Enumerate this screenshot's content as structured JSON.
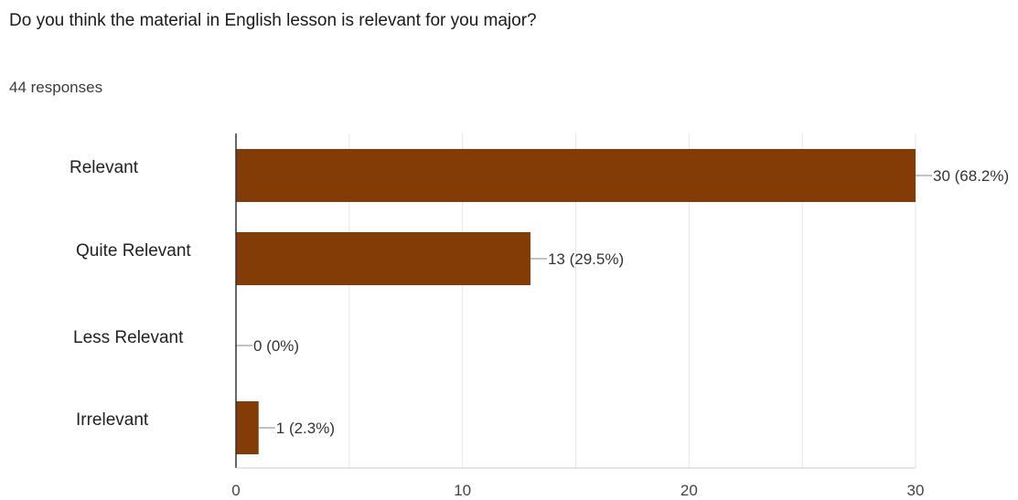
{
  "question": {
    "text": "Do you think the material in English lesson is relevant for you major?",
    "responses": "44 responses"
  },
  "colors": {
    "bar": "#833C06",
    "grid": "#e6e6e6",
    "axis": "#333333",
    "leader": "#9e9e9e"
  },
  "chart_data": {
    "type": "bar",
    "orientation": "horizontal",
    "title": "Do you think the material in English lesson is relevant for you major?",
    "categories": [
      "Relevant",
      "Quite Relevant",
      "Less Relevant",
      "Irrelevant"
    ],
    "values": [
      30,
      13,
      0,
      1
    ],
    "data_labels": [
      "30 (68.2%)",
      "13 (29.5%)",
      "0 (0%)",
      "1 (2.3%)"
    ],
    "xlim": [
      0,
      30
    ],
    "x_ticks": [
      0,
      10,
      20,
      30
    ],
    "x_tick_labels": [
      "0",
      "10",
      "20",
      "30"
    ],
    "grid": true,
    "legend": "none"
  }
}
